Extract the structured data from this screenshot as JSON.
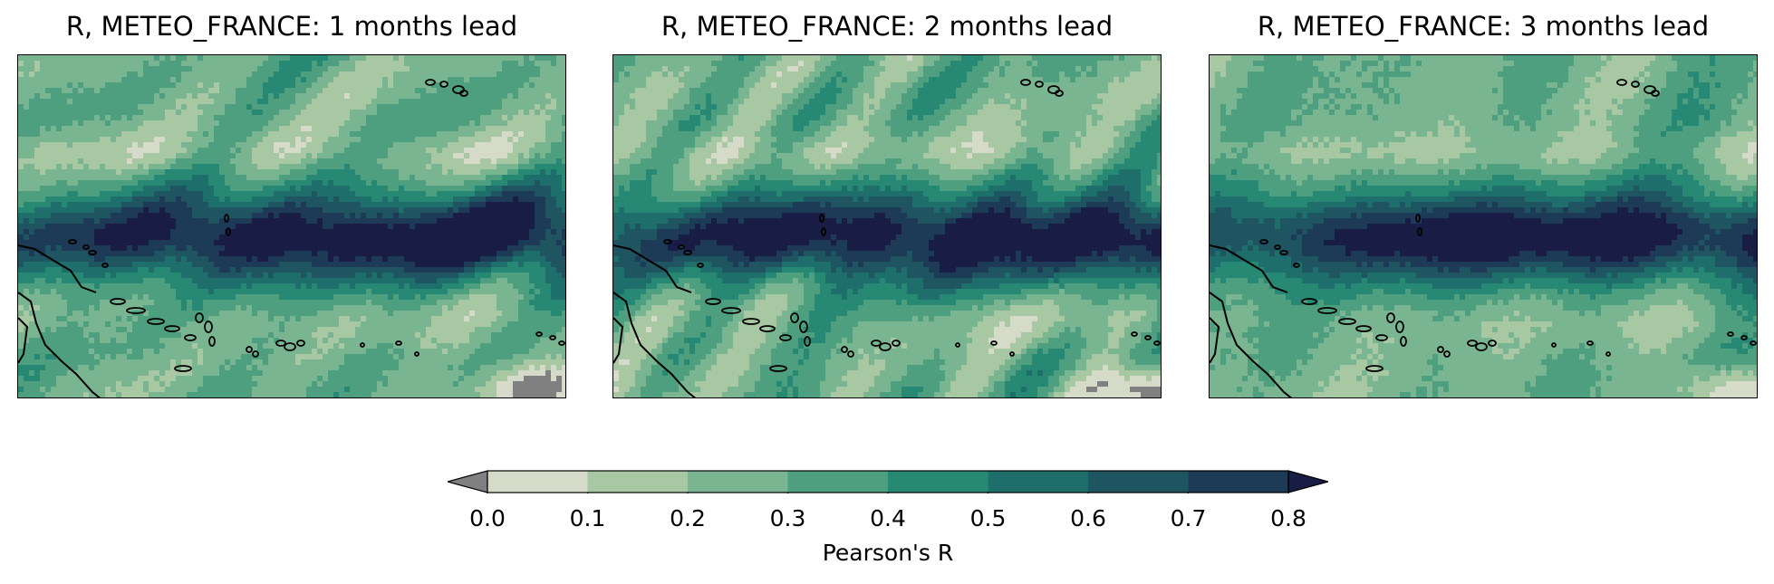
{
  "panels": [
    {
      "title": "R, METEO_FRANCE: 1 months lead"
    },
    {
      "title": "R, METEO_FRANCE: 2 months lead"
    },
    {
      "title": "R, METEO_FRANCE: 3 months lead"
    }
  ],
  "colorbar": {
    "label": "Pearson's R",
    "ticks": [
      "0.0",
      "0.1",
      "0.2",
      "0.3",
      "0.4",
      "0.5",
      "0.6",
      "0.7",
      "0.8"
    ],
    "levels": [
      0.0,
      0.1,
      0.2,
      0.3,
      0.4,
      0.5,
      0.6,
      0.7,
      0.8
    ],
    "colors": [
      "#d6dbc9",
      "#a8c8a4",
      "#7ab591",
      "#4d9f80",
      "#278873",
      "#1e6e6b",
      "#1f5461",
      "#1d3a56"
    ],
    "under_color": "#808080",
    "over_color": "#191c45",
    "extend": "both"
  }
}
